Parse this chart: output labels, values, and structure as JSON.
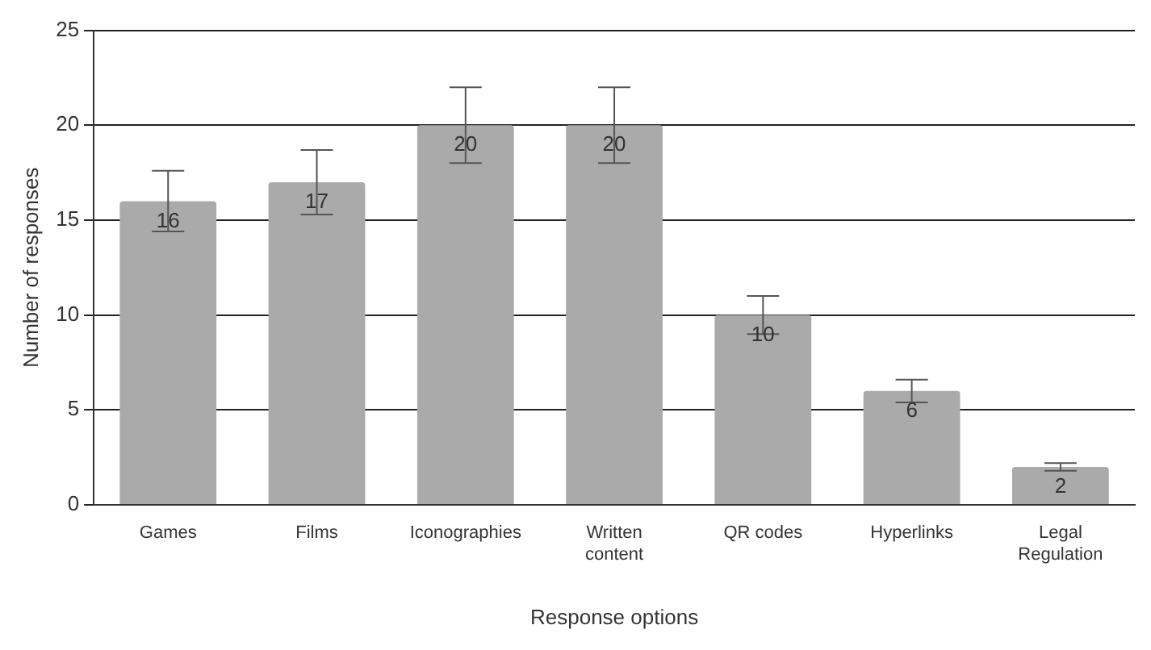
{
  "chart_data": {
    "type": "bar",
    "xlabel": "Response options",
    "ylabel": "Number of responses",
    "categories": [
      "Games",
      "Films",
      "Iconographies",
      "Written content",
      "QR codes",
      "Hyperlinks",
      "Legal Regulation"
    ],
    "values": [
      16,
      17,
      20,
      20,
      10,
      6,
      2
    ],
    "errors": [
      1.6,
      1.7,
      2,
      2,
      1,
      0.6,
      0.2
    ],
    "color": "#aaaaaa",
    "data_labels": true,
    "ylim": [
      0,
      25
    ],
    "yticks": [
      0,
      5,
      10,
      15,
      20,
      25
    ],
    "grid": "y",
    "legend": false
  }
}
